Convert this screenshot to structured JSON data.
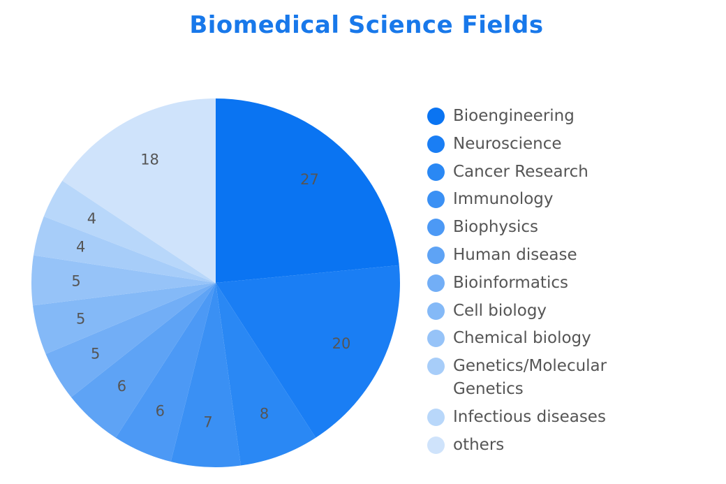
{
  "chart_data": {
    "type": "pie",
    "title": "Biomedical Science Fields",
    "slices": [
      {
        "label": "Bioengineering",
        "value": 27,
        "color": "#0a74f2"
      },
      {
        "label": "Neuroscience",
        "value": 20,
        "color": "#1a7ef4"
      },
      {
        "label": "Cancer Research",
        "value": 8,
        "color": "#2a88f4"
      },
      {
        "label": "Immunology",
        "value": 7,
        "color": "#3a90f4"
      },
      {
        "label": "Biophysics",
        "value": 6,
        "color": "#4c99f5"
      },
      {
        "label": "Human disease",
        "value": 6,
        "color": "#5ea3f5"
      },
      {
        "label": "Bioinformatics",
        "value": 5,
        "color": "#72aef6"
      },
      {
        "label": "Cell biology",
        "value": 5,
        "color": "#84b9f7"
      },
      {
        "label": "Chemical biology",
        "value": 5,
        "color": "#96c3f8"
      },
      {
        "label": "Genetics/Molecular Genetics",
        "value": 4,
        "color": "#a7cdf9"
      },
      {
        "label": "Infectious diseases",
        "value": 4,
        "color": "#b8d7fa"
      },
      {
        "label": "others",
        "value": 18,
        "color": "#cfe3fb"
      }
    ],
    "legend_placement": "right"
  }
}
